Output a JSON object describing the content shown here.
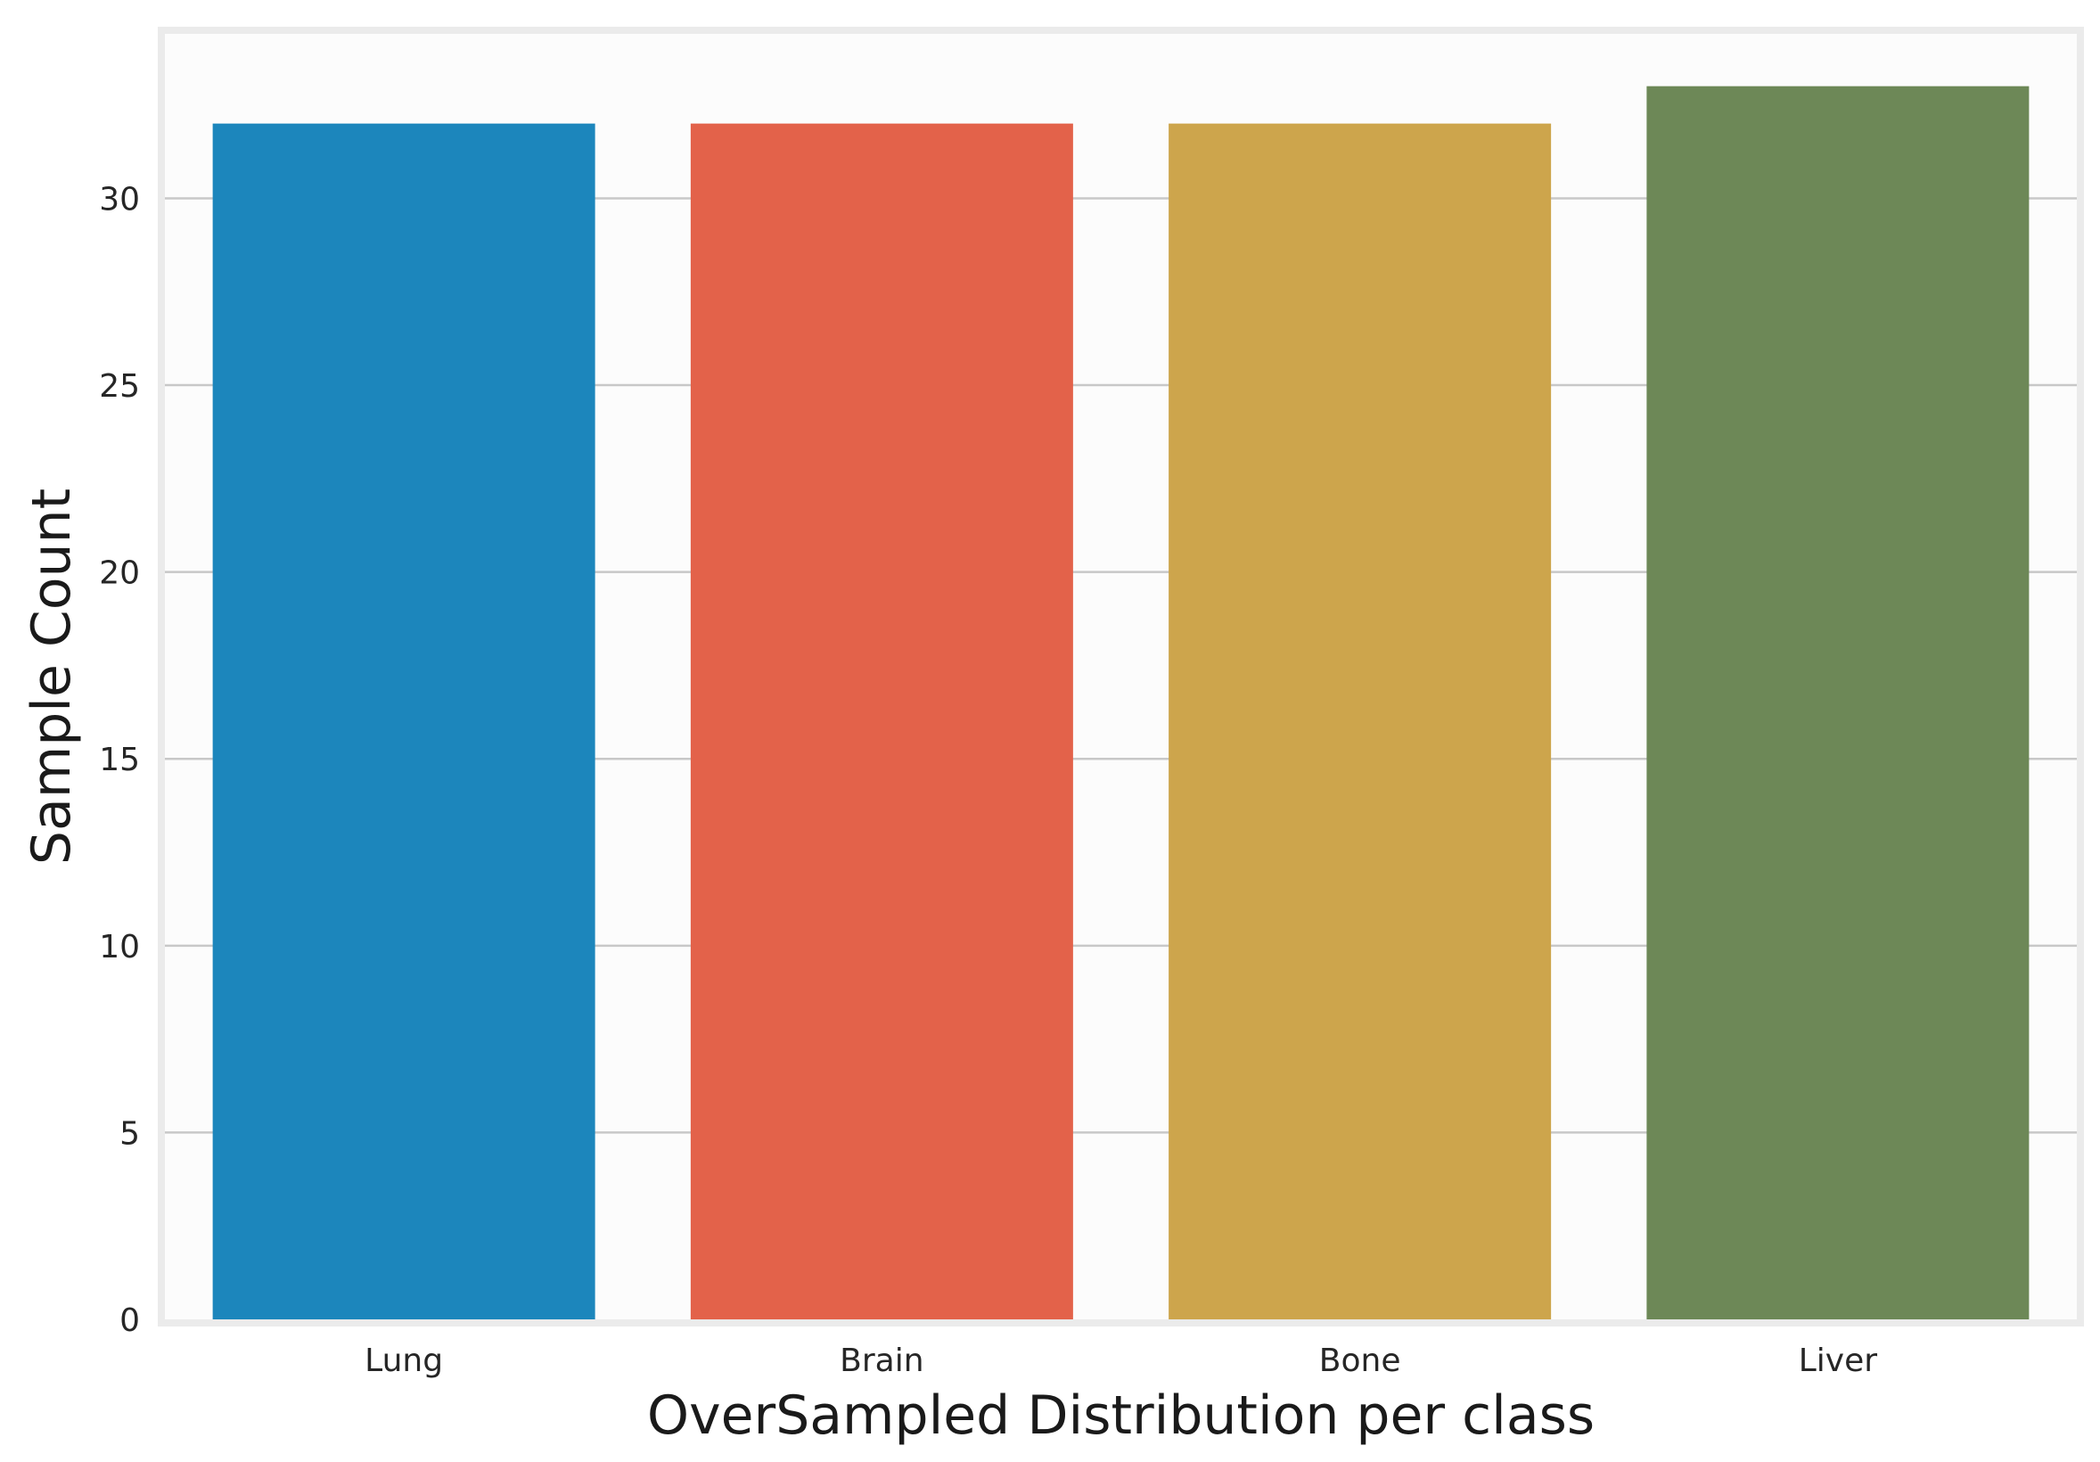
{
  "chart_data": {
    "type": "bar",
    "title": "",
    "xlabel": "OverSampled Distribution per class",
    "ylabel": "Sample Count",
    "categories": [
      "Lung",
      "Brain",
      "Bone",
      "Liver"
    ],
    "values": [
      32,
      32,
      32,
      33
    ],
    "colors": [
      "#1c86bc",
      "#e3624a",
      "#cda54c",
      "#6d8857"
    ],
    "ylim": [
      0,
      34.4
    ],
    "yticks": [
      0,
      5,
      10,
      15,
      20,
      25,
      30
    ],
    "grid": "horizontal",
    "background": "#fcfcfc",
    "frame_color": "#ebebeb",
    "grid_color": "#c8c8c8"
  }
}
